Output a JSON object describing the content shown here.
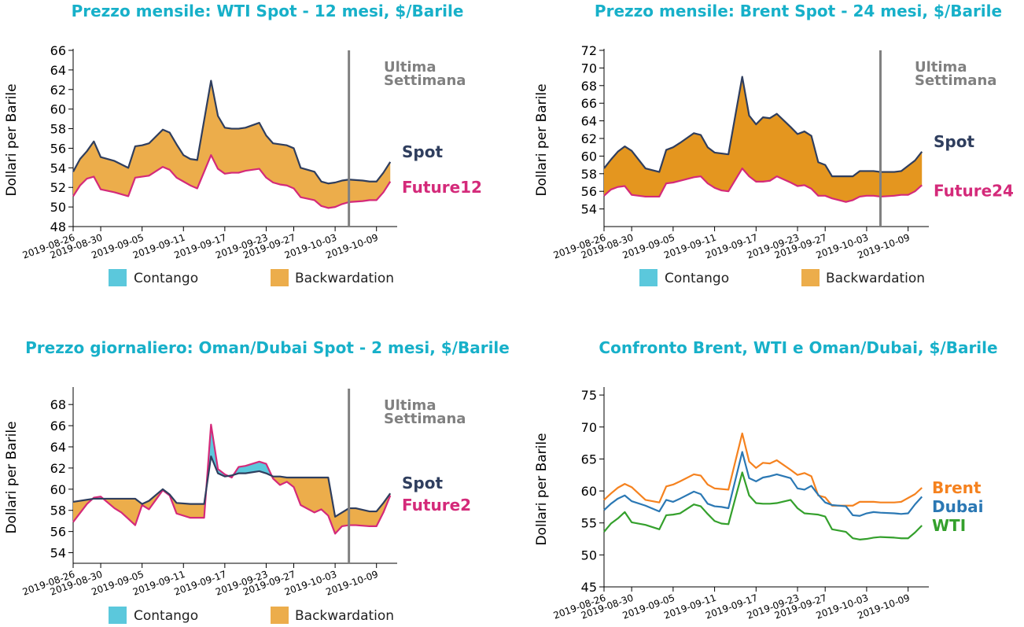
{
  "legend": {
    "contango": "Contango",
    "backwardation": "Backwardation"
  },
  "colors": {
    "title": "#17b0c9",
    "spot": "#2f3e5e",
    "future": "#d42a7a",
    "contango": "#5bc8dc",
    "backwardation": "#ecad4b",
    "backwardation_dark": "#e4961f",
    "vline": "#808080",
    "brent": "#f5821f",
    "dubai": "#2b78b4",
    "wti": "#34a02c"
  },
  "chart_data": [
    {
      "id": "wti",
      "type": "area",
      "title": "Prezzo mensile: WTI Spot - 12 mesi, $/Barile",
      "ylabel": "Dollari per Barile",
      "ylim": [
        48,
        66
      ],
      "yticks": [
        48,
        50,
        52,
        54,
        56,
        58,
        60,
        62,
        64,
        66
      ],
      "xlim": [
        "2019-08-26",
        "2019-10-12"
      ],
      "xticks": [
        "2019-08-26",
        "2019-08-30",
        "2019-09-05",
        "2019-09-11",
        "2019-09-17",
        "2019-09-23",
        "2019-09-27",
        "2019-10-03",
        "2019-10-09"
      ],
      "last_week_line": "2019-10-05",
      "last_week_label": [
        "Ultima",
        "Settimana"
      ],
      "spot_label": "Spot",
      "future_label": "Future12",
      "x": [
        "2019-08-26",
        "2019-08-27",
        "2019-08-28",
        "2019-08-29",
        "2019-08-30",
        "2019-09-01",
        "2019-09-03",
        "2019-09-04",
        "2019-09-05",
        "2019-09-06",
        "2019-09-08",
        "2019-09-09",
        "2019-09-10",
        "2019-09-11",
        "2019-09-12",
        "2019-09-13",
        "2019-09-15",
        "2019-09-16",
        "2019-09-17",
        "2019-09-18",
        "2019-09-19",
        "2019-09-20",
        "2019-09-22",
        "2019-09-23",
        "2019-09-24",
        "2019-09-25",
        "2019-09-26",
        "2019-09-27",
        "2019-09-28",
        "2019-09-30",
        "2019-10-01",
        "2019-10-02",
        "2019-10-03",
        "2019-10-04",
        "2019-10-05",
        "2019-10-07",
        "2019-10-08",
        "2019-10-09",
        "2019-10-10",
        "2019-10-11"
      ],
      "spot": [
        53.6,
        54.9,
        55.7,
        56.7,
        55.1,
        54.7,
        54.0,
        56.2,
        56.3,
        56.5,
        57.9,
        57.6,
        56.4,
        55.3,
        54.9,
        54.8,
        62.9,
        59.3,
        58.1,
        58.0,
        58.0,
        58.1,
        58.6,
        57.3,
        56.5,
        56.4,
        56.3,
        56.0,
        54.0,
        53.6,
        52.6,
        52.4,
        52.5,
        52.7,
        52.8,
        52.7,
        52.6,
        52.6,
        53.5,
        54.6
      ],
      "future": [
        51.1,
        52.2,
        52.9,
        53.1,
        51.8,
        51.5,
        51.1,
        53.0,
        53.1,
        53.2,
        54.1,
        53.8,
        53.0,
        52.6,
        52.2,
        51.9,
        55.3,
        53.9,
        53.4,
        53.5,
        53.5,
        53.7,
        53.9,
        53.0,
        52.5,
        52.3,
        52.2,
        51.9,
        51.0,
        50.7,
        50.1,
        49.9,
        50.0,
        50.3,
        50.5,
        50.6,
        50.7,
        50.7,
        51.5,
        52.6
      ],
      "fill_area": "backwardation"
    },
    {
      "id": "brent",
      "type": "area",
      "title": "Prezzo mensile: Brent Spot - 24 mesi, $/Barile",
      "ylabel": "Dollari per Barile",
      "ylim": [
        52,
        72
      ],
      "yticks": [
        54,
        56,
        58,
        60,
        62,
        64,
        66,
        68,
        70,
        72
      ],
      "xlim": [
        "2019-08-26",
        "2019-10-12"
      ],
      "xticks": [
        "2019-08-26",
        "2019-08-30",
        "2019-09-05",
        "2019-09-11",
        "2019-09-17",
        "2019-09-23",
        "2019-09-27",
        "2019-10-03",
        "2019-10-09"
      ],
      "last_week_line": "2019-10-05",
      "last_week_label": [
        "Ultima",
        "Settimana"
      ],
      "spot_label": "Spot",
      "future_label": "Future24",
      "x": [
        "2019-08-26",
        "2019-08-27",
        "2019-08-28",
        "2019-08-29",
        "2019-08-30",
        "2019-09-01",
        "2019-09-03",
        "2019-09-04",
        "2019-09-05",
        "2019-09-06",
        "2019-09-08",
        "2019-09-09",
        "2019-09-10",
        "2019-09-11",
        "2019-09-12",
        "2019-09-13",
        "2019-09-15",
        "2019-09-16",
        "2019-09-17",
        "2019-09-18",
        "2019-09-19",
        "2019-09-20",
        "2019-09-22",
        "2019-09-23",
        "2019-09-24",
        "2019-09-25",
        "2019-09-26",
        "2019-09-27",
        "2019-09-28",
        "2019-09-30",
        "2019-10-01",
        "2019-10-02",
        "2019-10-03",
        "2019-10-04",
        "2019-10-05",
        "2019-10-07",
        "2019-10-08",
        "2019-10-09",
        "2019-10-10",
        "2019-10-11"
      ],
      "spot": [
        58.6,
        59.6,
        60.5,
        61.1,
        60.6,
        58.6,
        58.2,
        60.7,
        61.0,
        61.5,
        62.6,
        62.4,
        61.0,
        60.4,
        60.3,
        60.2,
        69.0,
        64.6,
        63.6,
        64.4,
        64.3,
        64.8,
        63.3,
        62.5,
        62.8,
        62.3,
        59.3,
        59.0,
        57.7,
        57.7,
        57.7,
        58.3,
        58.3,
        58.3,
        58.2,
        58.2,
        58.3,
        58.9,
        59.5,
        60.5
      ],
      "future": [
        55.5,
        56.2,
        56.5,
        56.6,
        55.6,
        55.4,
        55.4,
        56.9,
        57.0,
        57.2,
        57.6,
        57.7,
        56.9,
        56.4,
        56.1,
        56.0,
        58.6,
        57.7,
        57.1,
        57.1,
        57.2,
        57.7,
        57.0,
        56.6,
        56.7,
        56.3,
        55.5,
        55.5,
        55.2,
        54.8,
        55.0,
        55.4,
        55.5,
        55.5,
        55.4,
        55.5,
        55.6,
        55.6,
        56.0,
        56.7
      ],
      "fill_area": "backwardation_dark"
    },
    {
      "id": "dubai",
      "type": "area",
      "title": "Prezzo giornaliero: Oman/Dubai Spot - 2 mesi, $/Barile",
      "ylabel": "Dollari per Barile",
      "ylim": [
        53,
        69.5
      ],
      "yticks": [
        54,
        56,
        58,
        60,
        62,
        64,
        66,
        68
      ],
      "xlim": [
        "2019-08-26",
        "2019-10-12"
      ],
      "xticks": [
        "2019-08-26",
        "2019-08-30",
        "2019-09-05",
        "2019-09-11",
        "2019-09-17",
        "2019-09-23",
        "2019-09-27",
        "2019-10-03",
        "2019-10-09"
      ],
      "last_week_line": "2019-10-05",
      "last_week_label": [
        "Ultima",
        "Settimana"
      ],
      "spot_label": "Spot",
      "future_label": "Future2",
      "x": [
        "2019-08-26",
        "2019-08-28",
        "2019-08-29",
        "2019-08-30",
        "2019-09-01",
        "2019-09-02",
        "2019-09-03",
        "2019-09-04",
        "2019-09-05",
        "2019-09-06",
        "2019-09-08",
        "2019-09-09",
        "2019-09-10",
        "2019-09-12",
        "2019-09-13",
        "2019-09-14",
        "2019-09-15",
        "2019-09-16",
        "2019-09-17",
        "2019-09-18",
        "2019-09-19",
        "2019-09-20",
        "2019-09-22",
        "2019-09-23",
        "2019-09-24",
        "2019-09-25",
        "2019-09-26",
        "2019-09-27",
        "2019-09-28",
        "2019-09-30",
        "2019-10-01",
        "2019-10-02",
        "2019-10-03",
        "2019-10-04",
        "2019-10-05",
        "2019-10-06",
        "2019-10-08",
        "2019-10-09",
        "2019-10-10",
        "2019-10-11"
      ],
      "spot": [
        58.8,
        59.0,
        59.1,
        59.1,
        59.1,
        59.1,
        59.1,
        59.1,
        58.6,
        58.9,
        60.0,
        59.5,
        58.7,
        58.6,
        58.6,
        58.6,
        63.1,
        61.5,
        61.2,
        61.3,
        61.5,
        61.5,
        61.7,
        61.5,
        61.2,
        61.2,
        61.1,
        61.1,
        61.1,
        61.1,
        61.1,
        61.1,
        57.4,
        57.8,
        58.2,
        58.2,
        57.9,
        57.9,
        58.7,
        59.6
      ],
      "future": [
        56.9,
        58.6,
        59.2,
        59.3,
        58.2,
        57.8,
        57.2,
        56.6,
        58.5,
        58.1,
        59.9,
        59.4,
        57.7,
        57.3,
        57.3,
        57.3,
        66.1,
        61.9,
        61.4,
        61.1,
        62.1,
        62.2,
        62.6,
        62.4,
        61.0,
        60.4,
        60.7,
        60.2,
        58.5,
        57.8,
        58.1,
        57.5,
        55.8,
        56.5,
        56.6,
        56.6,
        56.5,
        56.5,
        57.8,
        59.4
      ]
    },
    {
      "id": "compare",
      "type": "line",
      "title": "Confronto Brent, WTI e Oman/Dubai, $/Barile",
      "ylabel": "Dollari per Barile",
      "ylim": [
        45,
        76
      ],
      "yticks": [
        45,
        50,
        55,
        60,
        65,
        70,
        75
      ],
      "xlim": [
        "2019-08-26",
        "2019-10-12"
      ],
      "xticks": [
        "2019-08-26",
        "2019-08-30",
        "2019-09-05",
        "2019-09-11",
        "2019-09-17",
        "2019-09-23",
        "2019-09-27",
        "2019-10-03",
        "2019-10-09"
      ],
      "x": [
        "2019-08-26",
        "2019-08-27",
        "2019-08-28",
        "2019-08-29",
        "2019-08-30",
        "2019-09-01",
        "2019-09-03",
        "2019-09-04",
        "2019-09-05",
        "2019-09-06",
        "2019-09-08",
        "2019-09-09",
        "2019-09-10",
        "2019-09-11",
        "2019-09-12",
        "2019-09-13",
        "2019-09-15",
        "2019-09-16",
        "2019-09-17",
        "2019-09-18",
        "2019-09-19",
        "2019-09-20",
        "2019-09-22",
        "2019-09-23",
        "2019-09-24",
        "2019-09-25",
        "2019-09-26",
        "2019-09-27",
        "2019-09-28",
        "2019-09-30",
        "2019-10-01",
        "2019-10-02",
        "2019-10-03",
        "2019-10-04",
        "2019-10-05",
        "2019-10-07",
        "2019-10-08",
        "2019-10-09",
        "2019-10-10",
        "2019-10-11"
      ],
      "series": [
        {
          "name": "Brent",
          "color_key": "brent",
          "values": [
            58.6,
            59.6,
            60.5,
            61.1,
            60.6,
            58.6,
            58.2,
            60.7,
            61.0,
            61.5,
            62.6,
            62.4,
            61.0,
            60.4,
            60.3,
            60.2,
            69.0,
            64.6,
            63.6,
            64.4,
            64.3,
            64.8,
            63.3,
            62.5,
            62.8,
            62.3,
            59.3,
            59.0,
            57.7,
            57.7,
            57.7,
            58.3,
            58.3,
            58.3,
            58.2,
            58.2,
            58.3,
            58.9,
            59.5,
            60.5
          ]
        },
        {
          "name": "Dubai",
          "color_key": "dubai",
          "values": [
            57.0,
            58.0,
            58.8,
            59.3,
            58.4,
            57.7,
            56.8,
            58.6,
            58.3,
            58.8,
            59.9,
            59.5,
            58.0,
            57.6,
            57.5,
            57.3,
            66.1,
            62.0,
            61.5,
            62.1,
            62.3,
            62.6,
            62.0,
            60.4,
            60.2,
            60.8,
            59.4,
            58.2,
            57.8,
            57.6,
            56.2,
            56.1,
            56.5,
            56.7,
            56.6,
            56.5,
            56.4,
            56.5,
            57.9,
            59.1
          ]
        },
        {
          "name": "WTI",
          "color_key": "wti",
          "values": [
            53.6,
            54.9,
            55.7,
            56.7,
            55.1,
            54.7,
            54.0,
            56.2,
            56.3,
            56.5,
            57.9,
            57.6,
            56.4,
            55.3,
            54.9,
            54.8,
            62.9,
            59.3,
            58.1,
            58.0,
            58.0,
            58.1,
            58.6,
            57.3,
            56.5,
            56.4,
            56.3,
            56.0,
            54.0,
            53.6,
            52.6,
            52.4,
            52.5,
            52.7,
            52.8,
            52.7,
            52.6,
            52.6,
            53.5,
            54.6
          ]
        }
      ]
    }
  ]
}
